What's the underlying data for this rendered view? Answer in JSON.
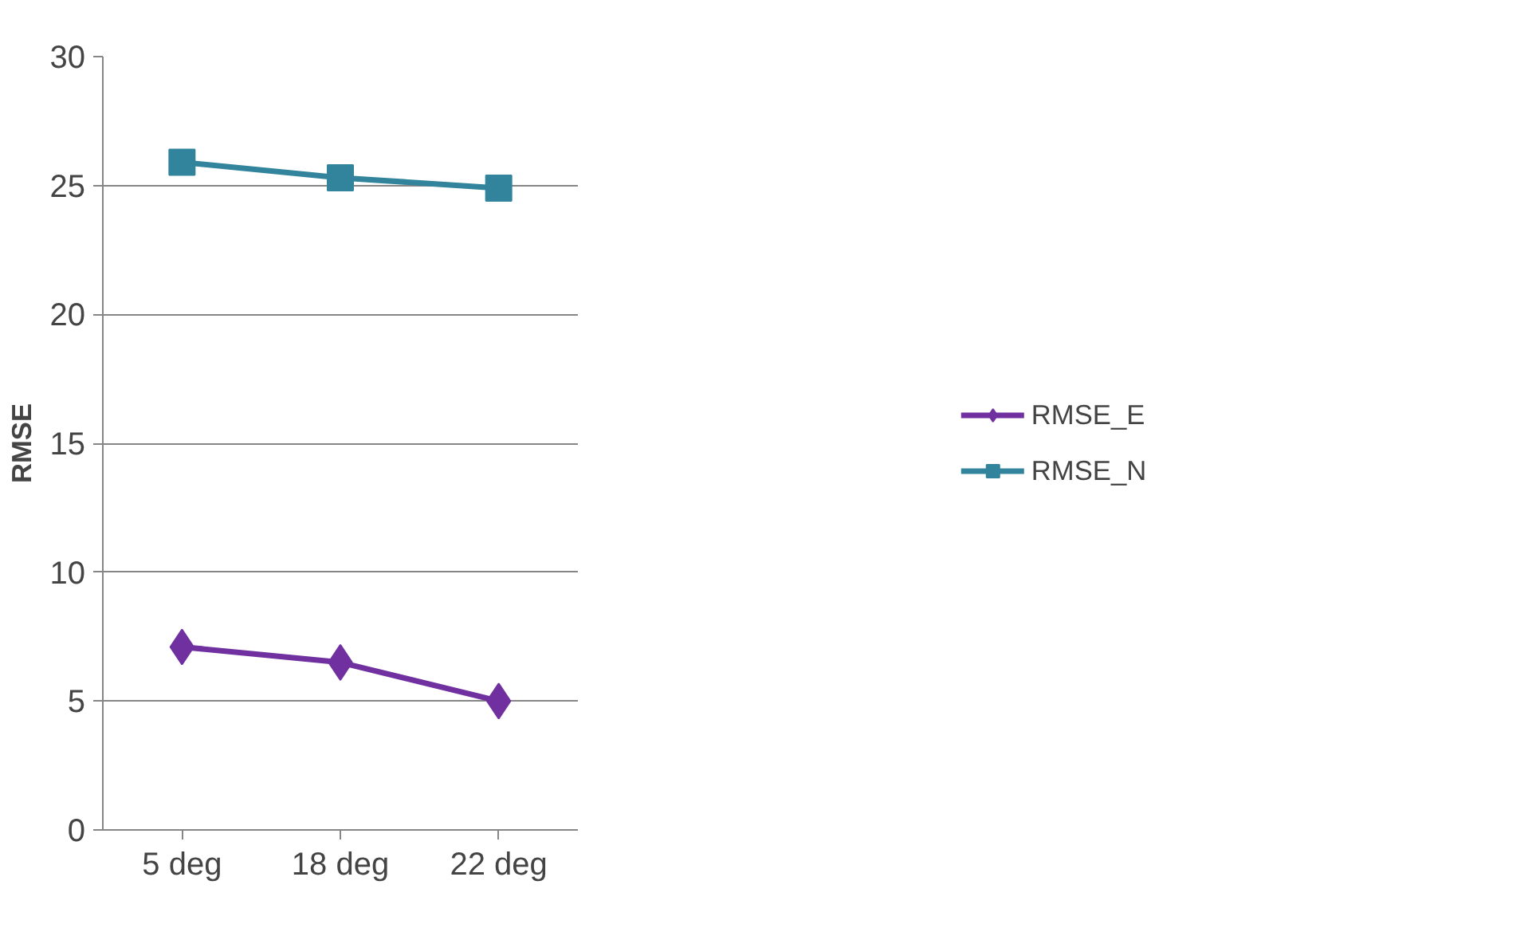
{
  "chart_data": {
    "type": "line",
    "ylabel": "RMSE",
    "categories": [
      "5 deg",
      "18 deg",
      "22 deg"
    ],
    "series": [
      {
        "name": "RMSE_E",
        "color": "#7030a0",
        "marker": "diamond",
        "values": [
          7.1,
          6.5,
          5.0
        ]
      },
      {
        "name": "RMSE_N",
        "color": "#31849b",
        "marker": "square",
        "values": [
          25.9,
          25.3,
          24.9
        ]
      }
    ],
    "ylim": [
      0,
      30
    ],
    "yticks": [
      0,
      5,
      10,
      15,
      20,
      25,
      30
    ],
    "grid": "y",
    "legend": "right",
    "line_style": "solid"
  }
}
